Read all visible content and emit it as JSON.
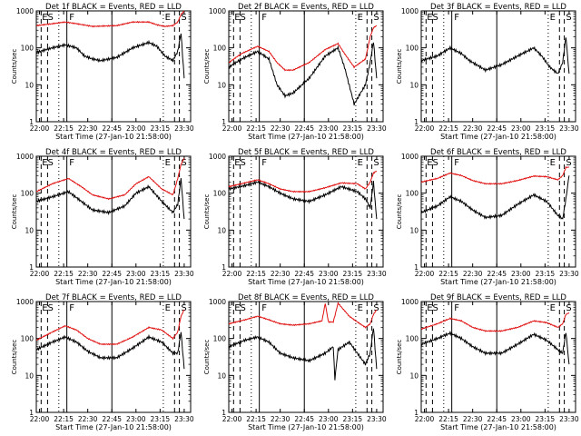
{
  "figure": {
    "background": "#ffffff",
    "colors": {
      "events": "#000000",
      "lld": "#e01010"
    }
  },
  "chart_data": [
    {
      "type": "line",
      "title": "Det 1f BLACK = Events, RED = LLD",
      "xlabel": "Start Time (27-Jan-10 21:58:00)",
      "ylabel": "Counts/sec",
      "xticks": [
        "22:00",
        "22:15",
        "22:30",
        "22:45",
        "23:00",
        "23:15",
        "23:30"
      ],
      "yticks": [
        "1",
        "10",
        "100",
        "1000"
      ],
      "ylim": [
        1,
        1000
      ],
      "yscale": "log",
      "markers": [
        "ES",
        "F",
        "E",
        "S"
      ],
      "series": [
        {
          "name": "Events",
          "color": "#000000",
          "x": [
            0,
            10,
            18,
            25,
            30,
            35,
            40,
            50,
            60,
            70,
            75,
            80,
            85,
            88,
            90,
            92
          ],
          "values": [
            75,
            100,
            120,
            100,
            60,
            50,
            45,
            55,
            100,
            140,
            110,
            60,
            45,
            80,
            250,
            15
          ]
        },
        {
          "name": "LLD",
          "color": "#e01010",
          "x": [
            0,
            10,
            18,
            25,
            35,
            50,
            60,
            70,
            75,
            80,
            85,
            88,
            90,
            92
          ],
          "values": [
            400,
            450,
            500,
            450,
            380,
            400,
            500,
            500,
            420,
            380,
            400,
            500,
            800,
            1000
          ]
        }
      ]
    },
    {
      "type": "line",
      "title": "Det 2f BLACK = Events, RED = LLD",
      "xlabel": "Start Time (27-Jan-10 21:58:00)",
      "ylabel": "Counts/sec",
      "xticks": [
        "22:00",
        "22:15",
        "22:30",
        "22:45",
        "23:00",
        "23:15",
        "23:30"
      ],
      "yticks": [
        "1",
        "10",
        "100",
        "1000"
      ],
      "ylim": [
        1,
        1000
      ],
      "yscale": "log",
      "markers": [
        "ES",
        "F",
        "E",
        "S"
      ],
      "series": [
        {
          "name": "Events",
          "color": "#000000",
          "x": [
            0,
            8,
            18,
            25,
            30,
            35,
            40,
            50,
            60,
            68,
            72,
            78,
            85,
            88,
            90,
            92
          ],
          "values": [
            30,
            50,
            80,
            50,
            10,
            5,
            6,
            15,
            60,
            100,
            30,
            3,
            10,
            40,
            150,
            15
          ]
        },
        {
          "name": "LLD",
          "color": "#e01010",
          "x": [
            0,
            8,
            18,
            25,
            30,
            35,
            40,
            50,
            60,
            68,
            72,
            78,
            85,
            88,
            90,
            92
          ],
          "values": [
            40,
            70,
            110,
            80,
            40,
            25,
            25,
            40,
            90,
            130,
            70,
            30,
            50,
            200,
            350,
            400
          ]
        }
      ]
    },
    {
      "type": "line",
      "title": "Det 3f BLACK = Events, RED = LLD",
      "xlabel": "Start Time (27-Jan-10 21:58:00)",
      "ylabel": "Counts/sec",
      "xticks": [
        "22:00",
        "22:15",
        "22:30",
        "22:45",
        "23:00",
        "23:15",
        "23:30"
      ],
      "yticks": [
        "1",
        "10",
        "100",
        "1000"
      ],
      "ylim": [
        1,
        1000
      ],
      "yscale": "log",
      "markers": [
        "ES",
        "F",
        "E",
        "S"
      ],
      "series": [
        {
          "name": "Events",
          "color": "#000000",
          "x": [
            0,
            10,
            18,
            25,
            30,
            40,
            50,
            60,
            70,
            75,
            80,
            85,
            88,
            90,
            92
          ],
          "values": [
            45,
            60,
            100,
            70,
            45,
            25,
            35,
            60,
            100,
            60,
            30,
            20,
            40,
            200,
            20
          ]
        }
      ]
    },
    {
      "type": "line",
      "title": "Det 4f BLACK = Events, RED = LLD",
      "xlabel": "Start Time (27-Jan-10 21:58:00)",
      "ylabel": "Counts/sec",
      "xticks": [
        "22:00",
        "22:15",
        "22:30",
        "22:45",
        "23:00",
        "23:15",
        "23:30"
      ],
      "yticks": [
        "1",
        "10",
        "100",
        "1000"
      ],
      "ylim": [
        1,
        1000
      ],
      "yscale": "log",
      "markers": [
        "ES",
        "F",
        "E",
        "S"
      ],
      "series": [
        {
          "name": "Events",
          "color": "#000000",
          "x": [
            0,
            10,
            20,
            28,
            35,
            45,
            55,
            62,
            70,
            78,
            85,
            88,
            90,
            92
          ],
          "values": [
            60,
            80,
            110,
            60,
            35,
            30,
            45,
            100,
            150,
            60,
            30,
            50,
            250,
            20
          ]
        },
        {
          "name": "LLD",
          "color": "#e01010",
          "x": [
            0,
            10,
            20,
            28,
            35,
            45,
            55,
            62,
            70,
            78,
            85,
            88,
            90,
            92
          ],
          "values": [
            110,
            180,
            250,
            150,
            90,
            70,
            90,
            180,
            280,
            130,
            90,
            250,
            600,
            900
          ]
        }
      ]
    },
    {
      "type": "line",
      "title": "Det 5f BLACK = Events, RED = LLD",
      "xlabel": "Start Time (27-Jan-10 21:58:00)",
      "ylabel": "Counts/sec",
      "xticks": [
        "22:00",
        "22:15",
        "22:30",
        "22:45",
        "23:00",
        "23:15",
        "23:30"
      ],
      "yticks": [
        "1",
        "10",
        "100",
        "1000"
      ],
      "ylim": [
        1,
        1000
      ],
      "yscale": "log",
      "markers": [
        "ES",
        "F",
        "E",
        "S"
      ],
      "series": [
        {
          "name": "Events",
          "color": "#000000",
          "x": [
            0,
            10,
            18,
            25,
            32,
            40,
            50,
            60,
            70,
            80,
            85,
            88,
            90,
            92
          ],
          "values": [
            130,
            160,
            200,
            150,
            100,
            70,
            60,
            90,
            150,
            110,
            70,
            40,
            200,
            20
          ]
        },
        {
          "name": "LLD",
          "color": "#e01010",
          "x": [
            0,
            10,
            18,
            25,
            32,
            40,
            50,
            60,
            70,
            80,
            85,
            88,
            90,
            92
          ],
          "values": [
            150,
            190,
            230,
            180,
            130,
            110,
            110,
            140,
            190,
            180,
            130,
            200,
            350,
            400
          ]
        }
      ]
    },
    {
      "type": "line",
      "title": "Det 6f BLACK = Events, RED = LLD",
      "xlabel": "Start Time (27-Jan-10 21:58:00)",
      "ylabel": "Counts/sec",
      "xticks": [
        "22:00",
        "22:15",
        "22:30",
        "22:45",
        "23:00",
        "23:15",
        "23:30"
      ],
      "yticks": [
        "1",
        "10",
        "100",
        "1000"
      ],
      "ylim": [
        1,
        1000
      ],
      "yscale": "log",
      "markers": [
        "ES",
        "F",
        "E",
        "S"
      ],
      "series": [
        {
          "name": "Events",
          "color": "#000000",
          "x": [
            0,
            10,
            18,
            25,
            32,
            40,
            50,
            60,
            70,
            78,
            85,
            88,
            90,
            92
          ],
          "values": [
            30,
            45,
            80,
            60,
            35,
            22,
            25,
            50,
            90,
            60,
            25,
            20,
            70,
            300
          ]
        },
        {
          "name": "LLD",
          "color": "#e01010",
          "x": [
            0,
            10,
            18,
            25,
            32,
            40,
            50,
            60,
            70,
            78,
            85,
            88,
            90,
            92
          ],
          "values": [
            200,
            250,
            350,
            300,
            220,
            180,
            180,
            220,
            290,
            280,
            230,
            300,
            500,
            500
          ]
        }
      ]
    },
    {
      "type": "line",
      "title": "Det 7f BLACK = Events, RED = LLD",
      "xlabel": "Start Time (27-Jan-10 21:58:00)",
      "ylabel": "Counts/sec",
      "xticks": [
        "22:00",
        "22:15",
        "22:30",
        "22:45",
        "23:00",
        "23:15",
        "23:30"
      ],
      "yticks": [
        "1",
        "10",
        "100",
        "1000"
      ],
      "ylim": [
        1,
        1000
      ],
      "yscale": "log",
      "markers": [
        "ES",
        "F",
        "E",
        "S"
      ],
      "series": [
        {
          "name": "Events",
          "color": "#000000",
          "x": [
            0,
            10,
            18,
            25,
            32,
            40,
            50,
            60,
            70,
            78,
            85,
            88,
            90,
            92
          ],
          "values": [
            50,
            80,
            110,
            80,
            45,
            30,
            30,
            55,
            110,
            80,
            40,
            40,
            150,
            15
          ]
        },
        {
          "name": "LLD",
          "color": "#e01010",
          "x": [
            0,
            10,
            18,
            25,
            32,
            40,
            50,
            60,
            70,
            78,
            85,
            88,
            90,
            92
          ],
          "values": [
            90,
            150,
            220,
            170,
            100,
            70,
            70,
            110,
            200,
            170,
            100,
            150,
            400,
            600
          ]
        }
      ]
    },
    {
      "type": "line",
      "title": "Det 8f BLACK = Events, RED = LLD",
      "xlabel": "Start Time (27-Jan-10 21:58:00)",
      "ylabel": "Counts/sec",
      "xticks": [
        "22:00",
        "22:15",
        "22:30",
        "22:45",
        "23:00",
        "23:15",
        "23:30"
      ],
      "yticks": [
        "1",
        "10",
        "100",
        "1000"
      ],
      "ylim": [
        1,
        1000
      ],
      "yscale": "log",
      "markers": [
        "ES",
        "F",
        "E",
        "S"
      ],
      "series": [
        {
          "name": "Events",
          "color": "#000000",
          "x": [
            0,
            10,
            18,
            25,
            32,
            40,
            50,
            60,
            65,
            66,
            68,
            75,
            80,
            85,
            88,
            90,
            92
          ],
          "values": [
            60,
            90,
            110,
            80,
            40,
            30,
            25,
            40,
            60,
            8,
            50,
            80,
            40,
            20,
            40,
            200,
            15
          ]
        },
        {
          "name": "LLD",
          "color": "#e01010",
          "x": [
            0,
            10,
            18,
            25,
            32,
            40,
            50,
            58,
            60,
            62,
            65,
            68,
            75,
            80,
            85,
            88,
            90,
            92
          ],
          "values": [
            250,
            320,
            400,
            320,
            250,
            230,
            250,
            300,
            900,
            280,
            280,
            900,
            400,
            280,
            200,
            250,
            450,
            600
          ]
        }
      ]
    },
    {
      "type": "line",
      "title": "Det 9f BLACK = Events, RED = LLD",
      "xlabel": "Start Time (27-Jan-10 21:58:00)",
      "ylabel": "Counts/sec",
      "xticks": [
        "22:00",
        "22:15",
        "22:30",
        "22:45",
        "23:00",
        "23:15",
        "23:30"
      ],
      "yticks": [
        "1",
        "10",
        "100",
        "1000"
      ],
      "ylim": [
        1,
        1000
      ],
      "yscale": "log",
      "markers": [
        "ES",
        "F",
        "E",
        "S"
      ],
      "series": [
        {
          "name": "Events",
          "color": "#000000",
          "x": [
            0,
            10,
            18,
            25,
            32,
            40,
            50,
            60,
            70,
            78,
            85,
            88,
            90,
            92
          ],
          "values": [
            70,
            100,
            140,
            100,
            60,
            40,
            40,
            70,
            130,
            90,
            50,
            40,
            150,
            20
          ]
        },
        {
          "name": "LLD",
          "color": "#e01010",
          "x": [
            0,
            10,
            18,
            25,
            32,
            40,
            50,
            60,
            70,
            78,
            85,
            88,
            90,
            92
          ],
          "values": [
            180,
            250,
            350,
            300,
            200,
            160,
            160,
            200,
            300,
            270,
            200,
            250,
            450,
            500
          ]
        }
      ]
    }
  ]
}
